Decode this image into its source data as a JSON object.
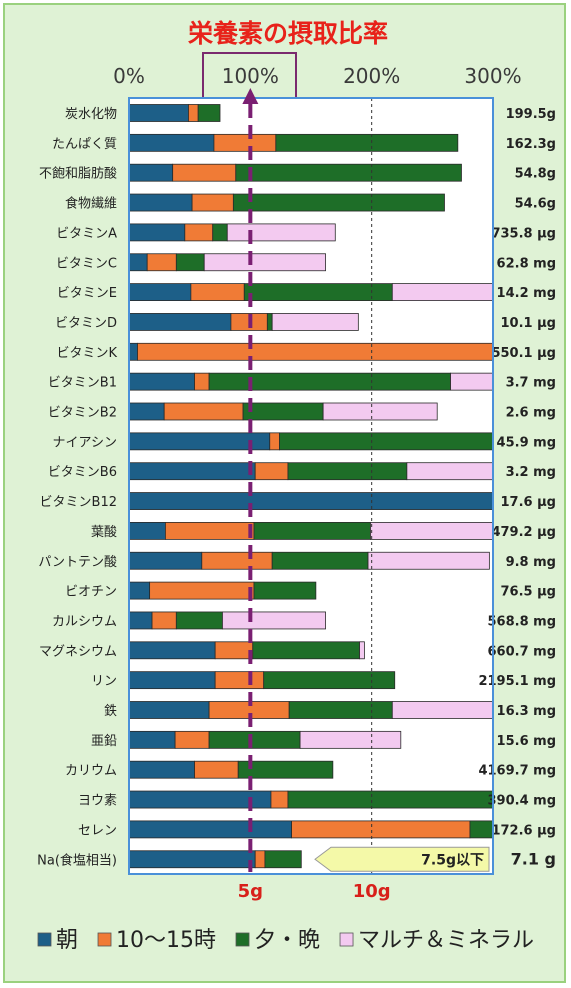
{
  "chart_data": {
    "type": "bar",
    "stacked": true,
    "orientation": "horizontal",
    "title": "栄養素の摂取比率",
    "x_ticks": [
      "0%",
      "100%",
      "200%",
      "300%"
    ],
    "xlim": [
      0,
      300
    ],
    "grid": true,
    "categories": [
      "炭水化物",
      "たんぱく質",
      "不飽和脂肪酸",
      "食物繊維",
      "ビタミンA",
      "ビタミンC",
      "ビタミンE",
      "ビタミンD",
      "ビタミンK",
      "ビタミンB1",
      "ビタミンB2",
      "ナイアシン",
      "ビタミンB6",
      "ビタミンB12",
      "葉酸",
      "パントテン酸",
      "ビオチン",
      "カルシウム",
      "マグネシウム",
      "リン",
      "鉄",
      "亜鉛",
      "カリウム",
      "ヨウ素",
      "セレン",
      "Na(食塩相当)"
    ],
    "intake_labels": [
      "199.5g",
      "162.3g",
      "54.8g",
      "54.6g",
      "735.8 μg",
      "62.8 mg",
      "14.2 mg",
      "10.1 μg",
      "550.1 μg",
      "3.7 mg",
      "2.6 mg",
      "45.9 mg",
      "3.2 mg",
      "17.6 μg",
      "479.2 μg",
      "9.8 mg",
      "76.5 μg",
      "568.8 mg",
      "660.7 mg",
      "2195.1 mg",
      "16.3 mg",
      "15.6 mg",
      "4169.7 mg",
      "390.4 mg",
      "172.6 μg",
      "7.1 g"
    ],
    "series": [
      {
        "name": "朝",
        "color": "#1d5f88",
        "values": [
          49,
          70,
          36,
          52,
          46,
          15,
          51,
          84,
          7,
          54,
          29,
          116,
          104,
          300,
          30,
          60,
          17,
          19,
          71,
          71,
          66,
          38,
          54,
          117,
          134,
          104
        ]
      },
      {
        "name": "10～15時",
        "color": "#f07b36",
        "values": [
          8,
          51,
          52,
          34,
          23,
          24,
          44,
          30,
          293,
          12,
          65,
          8,
          27,
          0,
          73,
          58,
          86,
          20,
          31,
          40,
          66,
          28,
          36,
          14,
          147,
          8
        ]
      },
      {
        "name": "夕・晩",
        "color": "#1e6e28",
        "values": [
          18,
          150,
          186,
          174,
          12,
          23,
          122,
          4,
          0,
          199,
          66,
          176,
          98,
          0,
          96,
          79,
          51,
          38,
          88,
          108,
          85,
          75,
          78,
          169,
          19,
          30
        ]
      },
      {
        "name": "マルチ＆ミネラル",
        "color": "#f3caf0",
        "values": [
          0,
          0,
          0,
          0,
          89,
          100,
          83,
          71,
          0,
          35,
          94,
          0,
          72,
          0,
          102,
          100,
          0,
          85,
          4,
          0,
          84,
          83,
          0,
          0,
          0,
          0
        ]
      }
    ],
    "target_label": "100%",
    "na_ref_5g": "5g",
    "na_ref_10g": "10g",
    "na_note": "7.5g以下"
  }
}
